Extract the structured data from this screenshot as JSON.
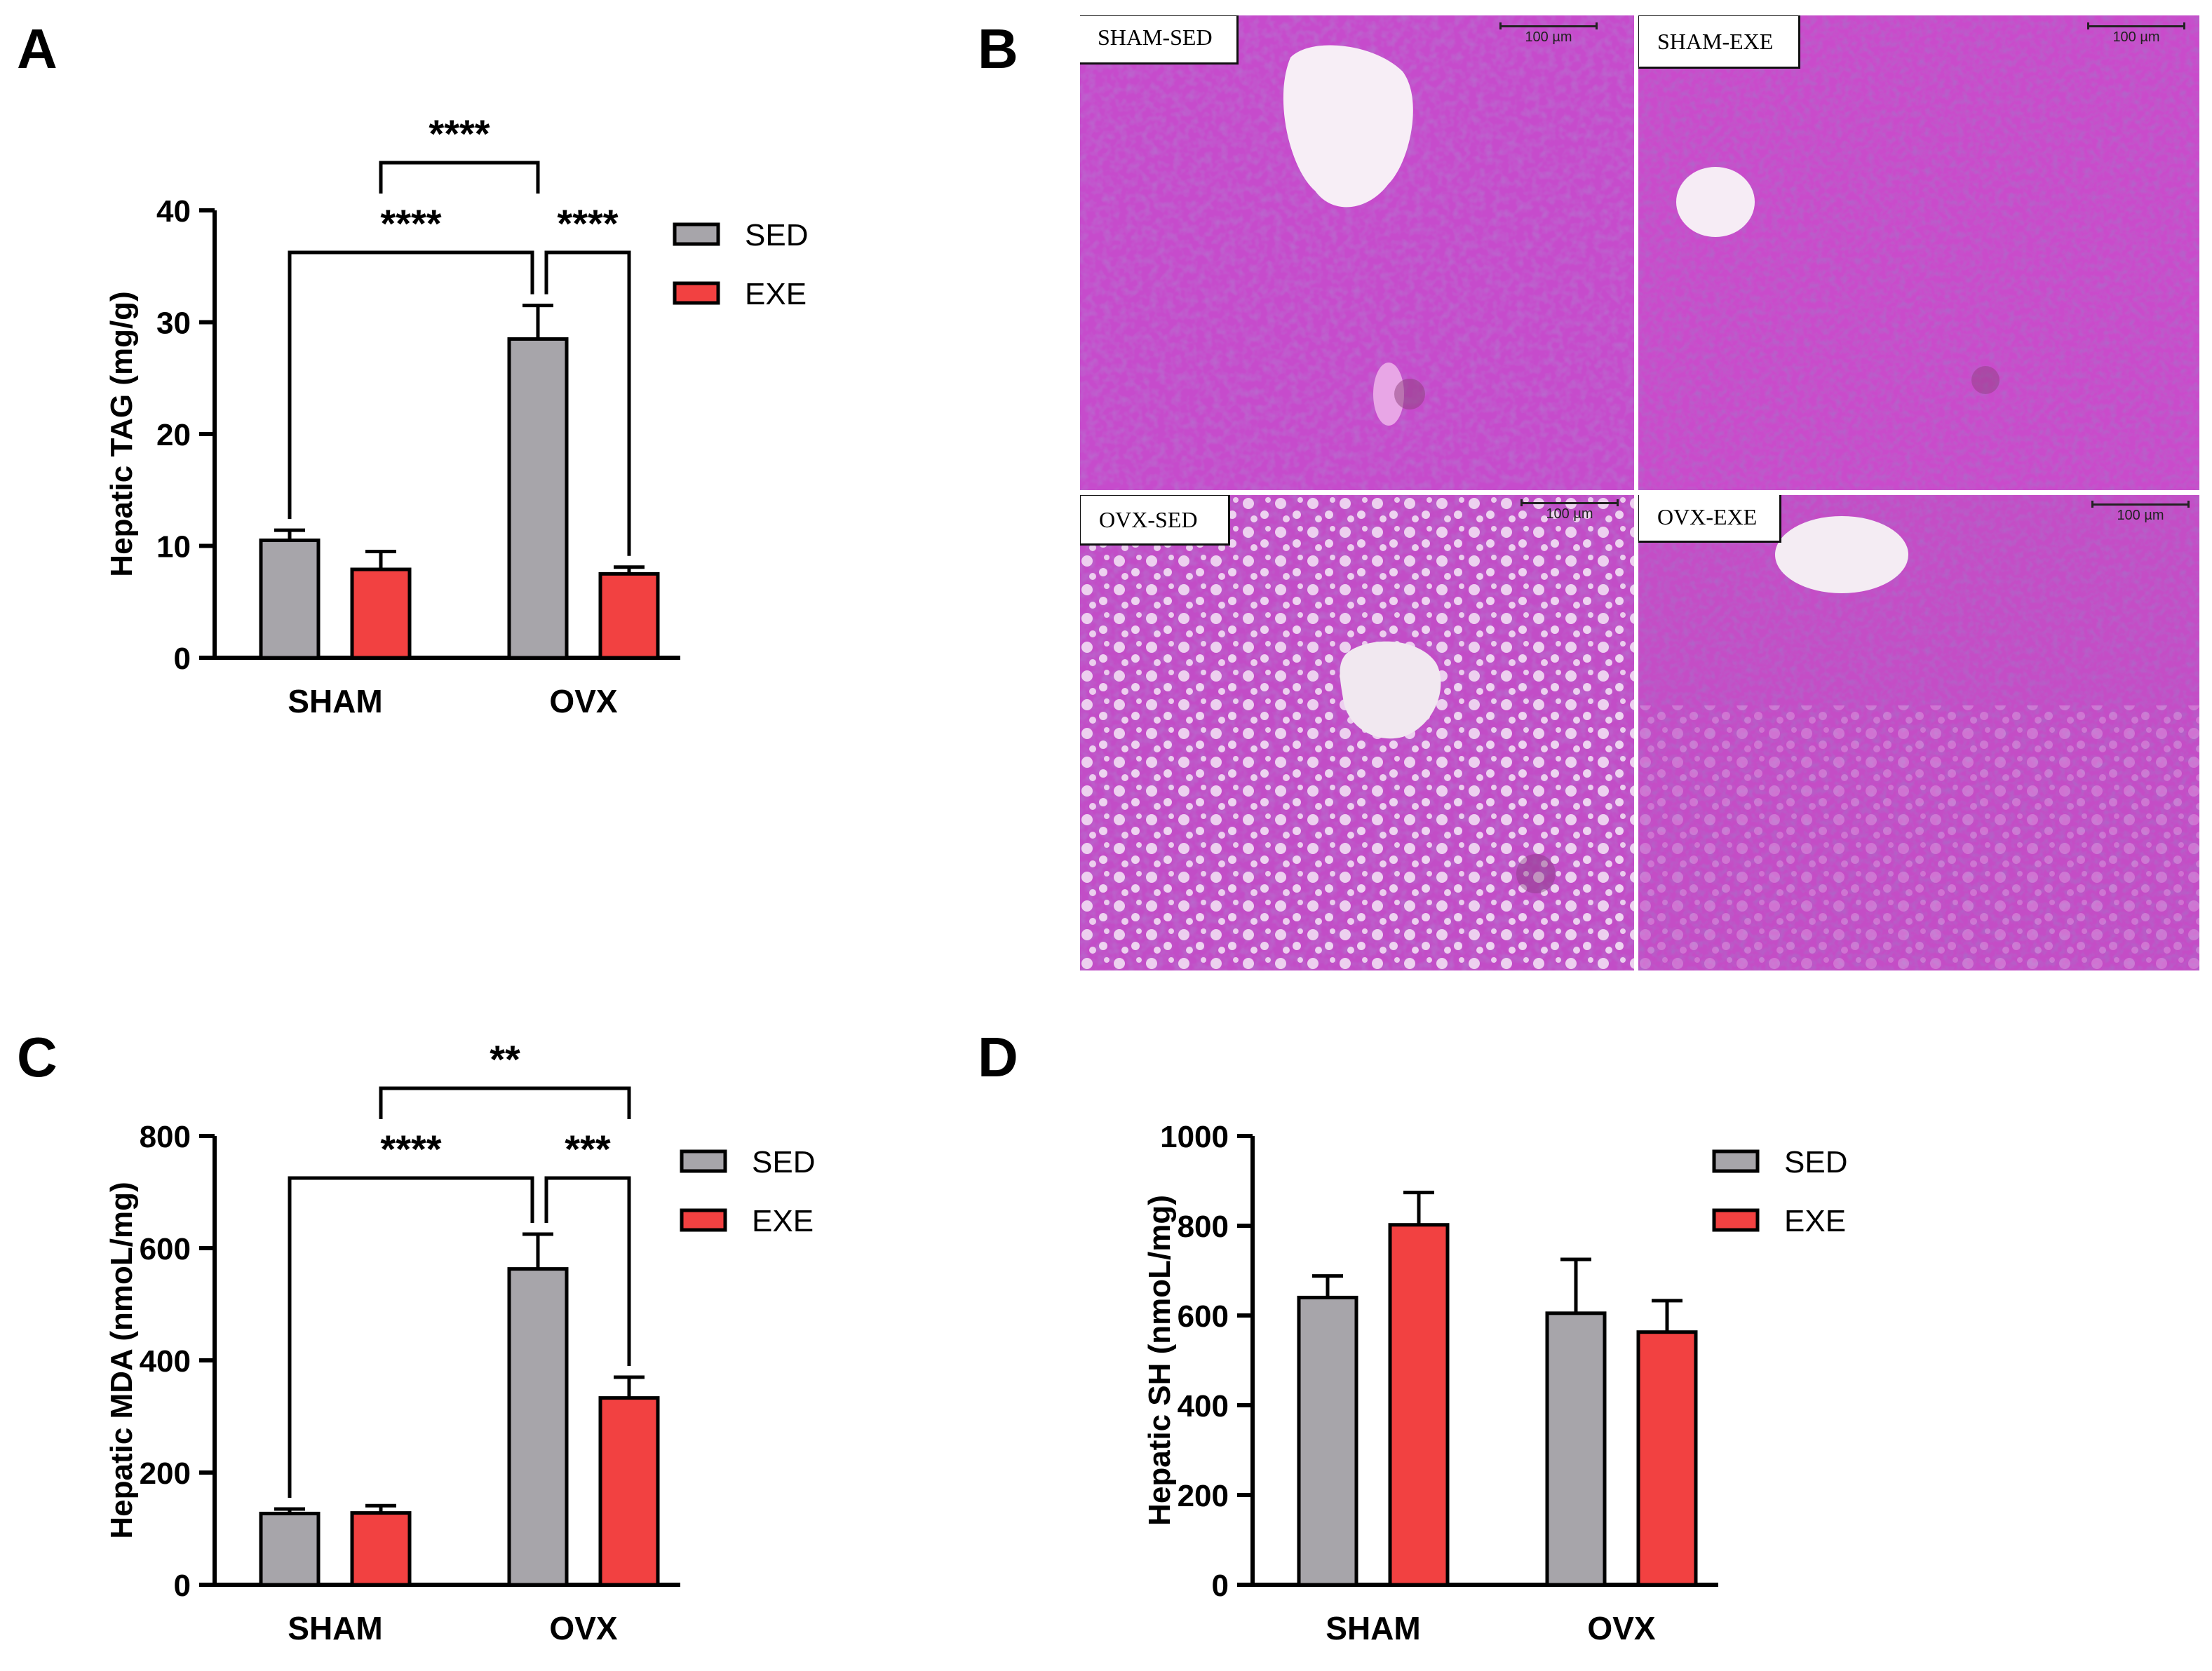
{
  "panels": {
    "A": {
      "letter": "A"
    },
    "B": {
      "letter": "B"
    },
    "C": {
      "letter": "C"
    },
    "D": {
      "letter": "D"
    }
  },
  "colors": {
    "sed": "#a7a5aa",
    "exe": "#f24141",
    "axis": "#000000"
  },
  "micrographs": {
    "tiles": [
      {
        "label": "SHAM-SED",
        "scale_label": "100 µm"
      },
      {
        "label": "SHAM-EXE",
        "scale_label": "100 µm"
      },
      {
        "label": "OVX-SED",
        "scale_label": "100 µm"
      },
      {
        "label": "OVX-EXE",
        "scale_label": "100 µm"
      }
    ]
  },
  "chart_data": [
    {
      "panel": "A",
      "type": "bar",
      "categories": [
        "SHAM",
        "OVX"
      ],
      "series": [
        {
          "name": "SED",
          "values": [
            10.5,
            28.5
          ],
          "errors": [
            0.9,
            3.0
          ]
        },
        {
          "name": "EXE",
          "values": [
            7.9,
            7.5
          ],
          "errors": [
            1.6,
            0.6
          ]
        }
      ],
      "ylabel": "Hepatic TAG (mg/g)",
      "ylim": [
        0,
        40
      ],
      "yticks": [
        0,
        10,
        20,
        30,
        40
      ],
      "legend": "top-right",
      "significance": [
        {
          "from": [
            0,
            0
          ],
          "to": [
            1,
            0
          ],
          "label": "****"
        },
        {
          "from": [
            1,
            0
          ],
          "to": [
            1,
            1
          ],
          "label": "****"
        },
        {
          "from": [
            0,
            1
          ],
          "to": [
            1,
            0
          ],
          "label": "****"
        }
      ]
    },
    {
      "panel": "C",
      "type": "bar",
      "categories": [
        "SHAM",
        "OVX"
      ],
      "series": [
        {
          "name": "SED",
          "values": [
            127,
            563
          ],
          "errors": [
            8,
            62
          ]
        },
        {
          "name": "EXE",
          "values": [
            128,
            333
          ],
          "errors": [
            13,
            37
          ]
        }
      ],
      "ylabel": "Hepatic MDA (nmoL/mg)",
      "ylim": [
        0,
        800
      ],
      "yticks": [
        0,
        200,
        400,
        600,
        800
      ],
      "legend": "top-right",
      "significance": [
        {
          "from": [
            0,
            0
          ],
          "to": [
            1,
            0
          ],
          "label": "****"
        },
        {
          "from": [
            1,
            0
          ],
          "to": [
            1,
            1
          ],
          "label": "***"
        },
        {
          "from": [
            0,
            1
          ],
          "to": [
            1,
            1
          ],
          "label": "**"
        }
      ]
    },
    {
      "panel": "D",
      "type": "bar",
      "categories": [
        "SHAM",
        "OVX"
      ],
      "series": [
        {
          "name": "SED",
          "values": [
            640,
            605
          ],
          "errors": [
            48,
            120
          ]
        },
        {
          "name": "EXE",
          "values": [
            802,
            563
          ],
          "errors": [
            72,
            70
          ]
        }
      ],
      "ylabel": "Hepatic SH (nmoL/mg)",
      "ylim": [
        0,
        1000
      ],
      "yticks": [
        0,
        200,
        400,
        600,
        800,
        1000
      ],
      "legend": "top-right",
      "significance": []
    }
  ]
}
